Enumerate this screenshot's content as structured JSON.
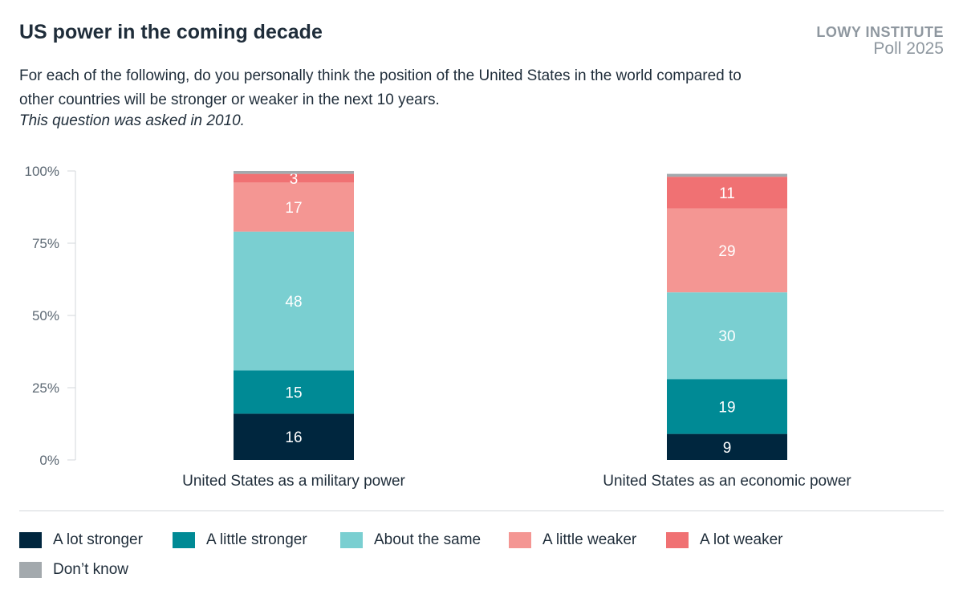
{
  "header": {
    "title": "US power in the coming decade",
    "brand_line1": "LOWY INSTITUTE",
    "brand_line2": "Poll 2025",
    "subtitle": "For each of the following, do you personally think the position of the United States in the world compared to other countries will be stronger or weaker in the next 10 years.",
    "note": "This question was asked in 2010."
  },
  "chart_data": {
    "type": "bar",
    "stacked": true,
    "categories": [
      "United States as a military power",
      "United States as an economic power"
    ],
    "series": [
      {
        "name": "A lot stronger",
        "color": "#00263e",
        "values": [
          16,
          9
        ]
      },
      {
        "name": "A little stronger",
        "color": "#008a95",
        "values": [
          15,
          19
        ]
      },
      {
        "name": "About the same",
        "color": "#7acfd1",
        "values": [
          48,
          30
        ]
      },
      {
        "name": "A little weaker",
        "color": "#f49693",
        "values": [
          17,
          29
        ]
      },
      {
        "name": "A lot weaker",
        "color": "#f07173",
        "values": [
          3,
          11
        ]
      },
      {
        "name": "Don’t know",
        "color": "#a3a9ad",
        "values": [
          1,
          1
        ]
      }
    ],
    "yticks": [
      "0%",
      "25%",
      "50%",
      "75%",
      "100%"
    ],
    "ylim": [
      0,
      100
    ],
    "legend_position": "bottom",
    "grid": false
  }
}
